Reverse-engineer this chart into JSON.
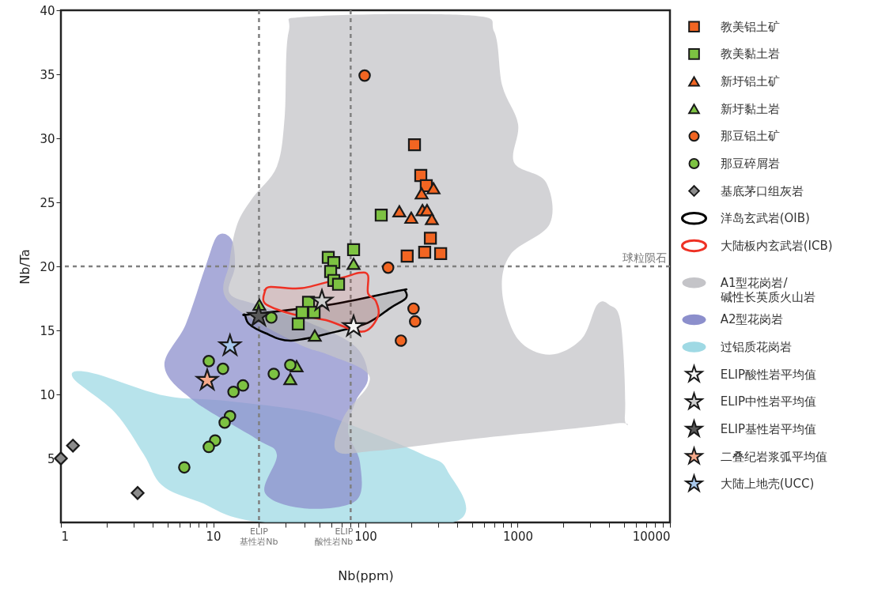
{
  "chart_data": {
    "type": "scatter",
    "xlabel": "Nb(ppm)",
    "ylabel": "Nb/Ta",
    "log": "x",
    "xlim": [
      1,
      10000
    ],
    "ylim": [
      0,
      40
    ],
    "xticks": [
      1,
      {
        "value": 2,
        "label": null
      },
      {
        "value": 3,
        "label": null
      },
      {
        "value": 4,
        "label": null
      },
      {
        "value": 5,
        "label": null
      },
      {
        "value": 6,
        "label": null
      },
      {
        "value": 7,
        "label": null
      },
      {
        "value": 8,
        "label": null
      },
      {
        "value": 9,
        "label": null
      },
      10,
      {
        "value": 20,
        "label": null
      },
      {
        "value": 30,
        "label": null
      },
      {
        "value": 40,
        "label": null
      },
      {
        "value": 50,
        "label": null
      },
      {
        "value": 60,
        "label": null
      },
      {
        "value": 70,
        "label": null
      },
      {
        "value": 80,
        "label": null
      },
      {
        "value": 90,
        "label": null
      },
      100,
      {
        "value": 200,
        "label": null
      },
      {
        "value": 300,
        "label": null
      },
      {
        "value": 400,
        "label": null
      },
      {
        "value": 500,
        "label": null
      },
      {
        "value": 600,
        "label": null
      },
      {
        "value": 700,
        "label": null
      },
      {
        "value": 800,
        "label": null
      },
      {
        "value": 900,
        "label": null
      },
      1000,
      {
        "value": 2000,
        "label": null
      },
      {
        "value": 3000,
        "label": null
      },
      {
        "value": 4000,
        "label": null
      },
      {
        "value": 5000,
        "label": null
      },
      {
        "value": 6000,
        "label": null
      },
      {
        "value": 7000,
        "label": null
      },
      {
        "value": 8000,
        "label": null
      },
      {
        "value": 9000,
        "label": null
      },
      10000
    ],
    "yticks": [
      5,
      10,
      15,
      20,
      25,
      30,
      35,
      40
    ],
    "grid": false,
    "legend": "right",
    "ref_lines": [
      {
        "axis": "x",
        "value": 20,
        "label": "ELIP\n基性岩Nb",
        "color": "#808080",
        "line_style": "dashed"
      },
      {
        "axis": "x",
        "value": 80,
        "label": "ELIP\n酸性岩Nb",
        "color": "#808080",
        "line_style": "dashed"
      },
      {
        "axis": "y",
        "value": 20,
        "label": "球粒陨石",
        "color": "#808080",
        "line_style": "dashed"
      }
    ],
    "series": [
      {
        "name": "教美铝土矿",
        "marker": "square",
        "color": "#f26522",
        "x": [
          210,
          231,
          251,
          267,
          188,
          245,
          312
        ],
        "values": [
          29.5,
          27.1,
          26.3,
          22.2,
          20.8,
          21.1,
          21.0
        ]
      },
      {
        "name": "教美黏土岩",
        "marker": "square",
        "color": "#7dc242",
        "x": [
          127,
          83.6,
          57.0,
          62.0,
          59.1,
          62.0,
          66.6,
          42.3,
          38.4,
          46.0,
          36.2
        ],
        "values": [
          24.0,
          21.3,
          20.7,
          20.3,
          19.6,
          18.9,
          18.6,
          17.2,
          16.4,
          16.4,
          15.5
        ]
      },
      {
        "name": "新圩铝土矿",
        "marker": "triangle",
        "color": "#f26522",
        "x": [
          280,
          234,
          167,
          200,
          237,
          254,
          273
        ],
        "values": [
          26.1,
          25.7,
          24.3,
          23.8,
          24.4,
          24.4,
          23.7
        ]
      },
      {
        "name": "新圩黏土岩",
        "marker": "triangle",
        "color": "#7dc242",
        "x": [
          83.6,
          20.1,
          46.5,
          35.3,
          32.1
        ],
        "values": [
          20.2,
          17.0,
          14.6,
          12.2,
          11.2
        ]
      },
      {
        "name": "那豆铝土矿",
        "marker": "circle",
        "color": "#f26522",
        "x": [
          98.8,
          141,
          207,
          212,
          171
        ],
        "values": [
          34.9,
          19.9,
          16.7,
          15.7,
          14.2
        ]
      },
      {
        "name": "那豆碎屑岩",
        "marker": "circle",
        "color": "#7dc242",
        "x": [
          24.1,
          9.36,
          11.6,
          15.7,
          13.6,
          25.0,
          32.1,
          12.9,
          11.9,
          10.3,
          9.36,
          6.46
        ],
        "values": [
          16.0,
          12.6,
          12.0,
          10.7,
          10.2,
          11.6,
          12.3,
          8.3,
          7.8,
          6.4,
          5.9,
          4.3
        ]
      },
      {
        "name": "基底茅口组灰岩",
        "marker": "diamond",
        "color": "#8c8c8c",
        "x": [
          1.0,
          1.2,
          3.19
        ],
        "values": [
          5.0,
          6.0,
          2.3
        ]
      },
      {
        "name": "洋岛玄武岩(OIB)",
        "type": "area",
        "line_style": "solid",
        "color": "#000000",
        "x": [
          16.2,
          22.7,
          58.4,
          167,
          182,
          184,
          148,
          104,
          64.3,
          32.5,
          21.9,
          17.2,
          16.2
        ],
        "values": [
          16.2,
          16.4,
          17.0,
          18.1,
          18.1,
          17.5,
          16.8,
          15.6,
          14.9,
          14.2,
          14.8,
          15.5,
          16.2
        ]
      },
      {
        "name": "大陆板内玄武岩(ICB)",
        "type": "area",
        "line_style": "solid",
        "color": "#ee3124",
        "x": [
          21.9,
          21.9,
          32.5,
          55.0,
          95.3,
          121,
          117,
          104,
          104,
          92.0,
          69.8,
          38.4,
          23.8,
          21.9
        ],
        "values": [
          18.1,
          17.1,
          16.3,
          15.8,
          14.9,
          16.1,
          17.3,
          17.9,
          19.3,
          19.5,
          19.1,
          18.3,
          18.4,
          18.1
        ]
      },
      {
        "name": "A1型花岗岩/\n碱性长英质火山岩",
        "type": "area",
        "color": "#c4c4c8",
        "x": [
          14.4,
          18.3,
          26.2,
          29.5,
          31.3,
          42.3,
          491,
          703,
          792,
          1006,
          948,
          1528,
          1622,
          893,
          792,
          1006,
          1622,
          2618,
          3327,
          3981,
          4764,
          5058,
          4227,
          491,
          117,
          64.3,
          72.4,
          104,
          97.7,
          57.0,
          34.1,
          12.5,
          12.8
        ],
        "values": [
          23.3,
          25.4,
          27.8,
          31.7,
          38.3,
          39.5,
          39.6,
          38.3,
          34.1,
          31.1,
          28.1,
          26.6,
          23.3,
          20.9,
          17.9,
          14.3,
          13.1,
          14.3,
          17.0,
          17.0,
          15.5,
          8.3,
          7.7,
          6.5,
          5.6,
          5.6,
          8.3,
          10.7,
          11.9,
          13.1,
          14.1,
          17.3,
          20.3
        ]
      },
      {
        "name": "A2型花岗岩",
        "type": "area",
        "color": "#8c8fcc",
        "x": [
          10.7,
          13.2,
          13.9,
          12.8,
          19.4,
          44.9,
          86.6,
          104,
          86.6,
          76.9,
          92.0,
          86.6,
          39.8,
          21.9,
          26.2,
          19.4,
          7.46,
          4.79,
          6.62,
          8.92
        ],
        "values": [
          22.4,
          22.1,
          20.0,
          17.9,
          17.0,
          15.5,
          13.7,
          11.3,
          9.5,
          7.1,
          4.7,
          1.7,
          1.1,
          2.3,
          5.3,
          6.5,
          9.5,
          12.2,
          15.5,
          20.0
        ]
      },
      {
        "name": "过铝质花岗岩",
        "type": "area",
        "color": "#9fd9e4",
        "x": [
          1.2,
          1.57,
          4.79,
          12.0,
          44.9,
          104,
          239,
          343,
          377,
          21.9,
          8.11,
          4.62,
          3.51,
          2.26
        ],
        "values": [
          11.3,
          11.7,
          9.9,
          9.5,
          8.6,
          7.1,
          5.3,
          4.1,
          0,
          0,
          1.6,
          2.9,
          5.3,
          8.6
        ]
      },
      {
        "name": "ELIP酸性岩平均值",
        "marker": "star",
        "color": "#f4f4f4",
        "x": [
          83.6
        ],
        "values": [
          15.3
        ]
      },
      {
        "name": "ELIP中性岩平均值",
        "marker": "star",
        "color": "#cfcfcf",
        "x": [
          51.8
        ],
        "values": [
          17.3
        ]
      },
      {
        "name": "ELIP基性岩平均值",
        "marker": "star",
        "color": "#5a5a5a",
        "x": [
          19.9
        ],
        "values": [
          16.1
        ]
      },
      {
        "name": "二叠纪岩浆弧平均值",
        "marker": "star",
        "color": "#f6a98a",
        "x": [
          9.14
        ],
        "values": [
          11.1
        ]
      },
      {
        "name": "大陆上地壳(UCC)",
        "marker": "star",
        "color": "#a9c9ec",
        "x": [
          12.9
        ],
        "values": [
          13.8
        ]
      }
    ]
  }
}
